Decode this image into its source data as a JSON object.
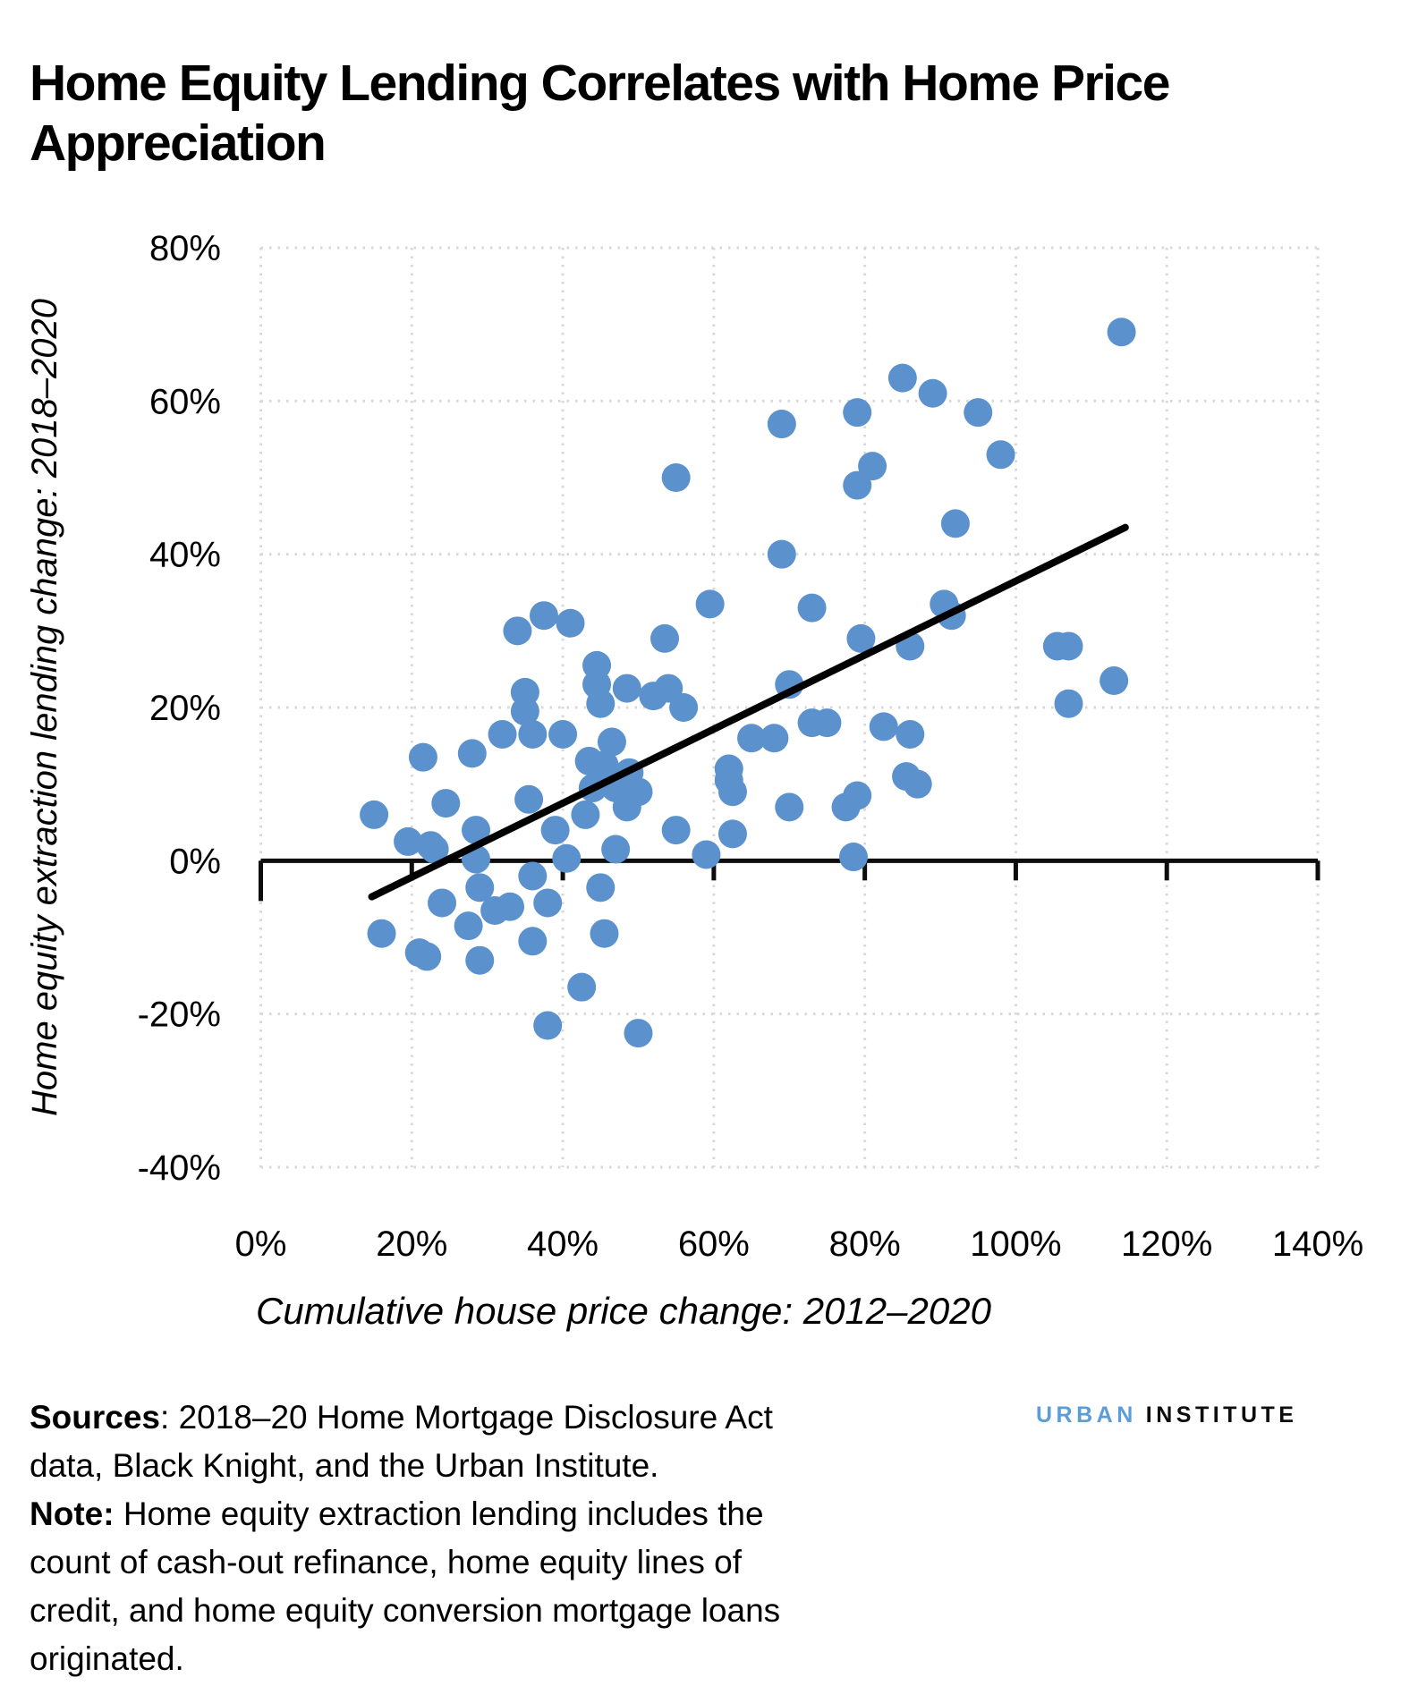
{
  "title": "Home Equity Lending Correlates with Home Price Appreciation",
  "chart_data": {
    "type": "scatter",
    "title": "Home Equity Lending Correlates with Home Price Appreciation",
    "xlabel": "Cumulative house price change: 2012–2020",
    "ylabel": "Home equity extraction lending change: 2018–2020",
    "xlim": [
      0,
      140
    ],
    "ylim": [
      -40,
      80
    ],
    "grid": true,
    "x_ticks": [
      0,
      20,
      40,
      60,
      80,
      100,
      120,
      140
    ],
    "x_tick_labels": [
      "0%",
      "20%",
      "40%",
      "60%",
      "80%",
      "100%",
      "120%",
      "140%"
    ],
    "y_ticks": [
      -40,
      -20,
      0,
      20,
      40,
      60,
      80
    ],
    "y_tick_labels": [
      "-40%",
      "-20%",
      "0%",
      "20%",
      "40%",
      "60%",
      "80%"
    ],
    "point_color": "#5B91CD",
    "point_radius": 16,
    "trend_line": {
      "x1": 14.7,
      "y1": -4.7,
      "x2": 114.5,
      "y2": 43.5,
      "color": "#000000"
    },
    "points": [
      [
        114,
        69
      ],
      [
        85,
        63
      ],
      [
        89,
        61
      ],
      [
        79,
        58.5
      ],
      [
        95,
        58.5
      ],
      [
        69,
        57
      ],
      [
        98,
        53
      ],
      [
        81,
        51.5
      ],
      [
        55,
        50
      ],
      [
        79,
        49
      ],
      [
        92,
        44
      ],
      [
        69,
        40
      ],
      [
        59.5,
        33.5
      ],
      [
        90.5,
        33.5
      ],
      [
        91.5,
        32
      ],
      [
        73,
        33
      ],
      [
        34,
        30
      ],
      [
        37.5,
        32
      ],
      [
        41,
        31
      ],
      [
        53.5,
        29
      ],
      [
        79.5,
        29
      ],
      [
        86,
        28
      ],
      [
        105.5,
        28
      ],
      [
        107,
        28
      ],
      [
        113,
        23.5
      ],
      [
        107,
        20.5
      ],
      [
        70,
        23
      ],
      [
        44.5,
        25.5
      ],
      [
        44.5,
        23
      ],
      [
        45,
        20.5
      ],
      [
        35,
        22
      ],
      [
        35,
        19.5
      ],
      [
        48.5,
        22.5
      ],
      [
        52,
        21.5
      ],
      [
        54,
        22.5
      ],
      [
        56,
        20
      ],
      [
        21.5,
        13.5
      ],
      [
        28,
        14
      ],
      [
        32,
        16.5
      ],
      [
        36,
        16.5
      ],
      [
        40,
        16.5
      ],
      [
        65,
        16
      ],
      [
        68,
        16
      ],
      [
        73,
        18
      ],
      [
        75,
        18
      ],
      [
        82.5,
        17.5
      ],
      [
        86,
        16.5
      ],
      [
        46.5,
        15.5
      ],
      [
        43.5,
        13
      ],
      [
        45.5,
        12.5
      ],
      [
        62,
        12
      ],
      [
        62,
        10.5
      ],
      [
        62.5,
        9
      ],
      [
        85.5,
        11
      ],
      [
        87,
        10
      ],
      [
        48.8,
        11.5
      ],
      [
        47,
        9.5
      ],
      [
        50,
        9
      ],
      [
        48.5,
        7
      ],
      [
        44,
        9.5
      ],
      [
        43,
        6
      ],
      [
        24.5,
        7.5
      ],
      [
        35.5,
        8
      ],
      [
        15,
        6
      ],
      [
        70,
        7
      ],
      [
        77.5,
        7
      ],
      [
        79,
        8.5
      ],
      [
        55,
        4
      ],
      [
        62.5,
        3.5
      ],
      [
        28.5,
        4
      ],
      [
        39,
        4
      ],
      [
        19.5,
        2.5
      ],
      [
        22.5,
        2
      ],
      [
        23,
        1.5
      ],
      [
        47,
        1.5
      ],
      [
        59,
        0.8
      ],
      [
        78.5,
        0.5
      ],
      [
        40.5,
        0.3
      ],
      [
        28.5,
        0.2
      ],
      [
        36,
        -2
      ],
      [
        24,
        -5.5
      ],
      [
        38,
        -5.5
      ],
      [
        45,
        -3.5
      ],
      [
        29,
        -3.5
      ],
      [
        16,
        -9.5
      ],
      [
        27.5,
        -8.5
      ],
      [
        31,
        -6.5
      ],
      [
        33,
        -6
      ],
      [
        36,
        -10.5
      ],
      [
        45.5,
        -9.5
      ],
      [
        21,
        -12
      ],
      [
        22,
        -12.5
      ],
      [
        29,
        -13
      ],
      [
        42.5,
        -16.5
      ],
      [
        38,
        -21.5
      ],
      [
        50,
        -22.5
      ]
    ]
  },
  "footer": {
    "lines": [
      {
        "b": "Sources",
        "t": ": 2018–20 Home Mortgage Disclosure Act"
      },
      {
        "b": "",
        "t": "data, Black Knight, and the Urban Institute."
      },
      {
        "b": "Note:",
        "t": " Home equity extraction lending includes the"
      },
      {
        "b": "",
        "t": "count of cash-out refinance, home equity lines of"
      },
      {
        "b": "",
        "t": "credit, and home equity conversion mortgage loans"
      },
      {
        "b": "",
        "t": "originated."
      }
    ]
  },
  "logo": {
    "urban": "URBAN",
    "institute": "INSTITUTE",
    "urban_color": "#5B9CD9"
  }
}
